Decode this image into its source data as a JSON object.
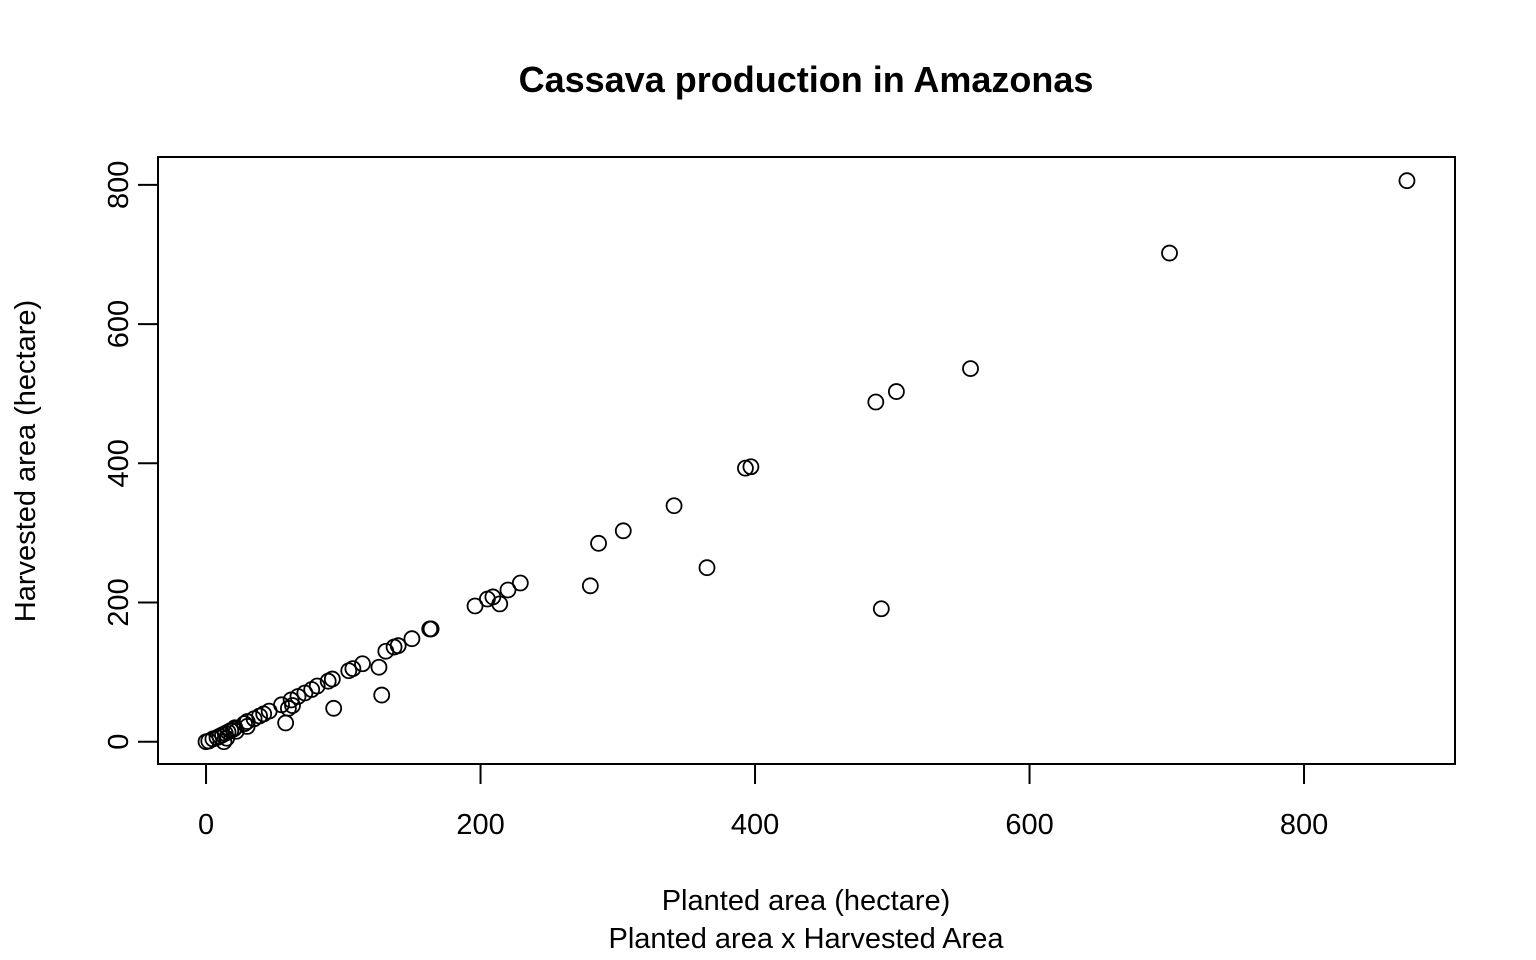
{
  "chart_data": {
    "type": "scatter",
    "title": "Cassava production in Amazonas",
    "xlabel": "Planted area (hectare)",
    "subtitle": "Planted area x Harvested Area",
    "ylabel": "Harvested area (hectare)",
    "xlim": [
      -35,
      910
    ],
    "ylim": [
      -32,
      840
    ],
    "x_ticks": [
      0,
      200,
      400,
      600,
      800
    ],
    "y_ticks": [
      0,
      200,
      400,
      600,
      800
    ],
    "grid": false,
    "legend": "none",
    "points": [
      {
        "x": 0,
        "y": 0
      },
      {
        "x": 2,
        "y": 1
      },
      {
        "x": 5,
        "y": 4
      },
      {
        "x": 8,
        "y": 6
      },
      {
        "x": 10,
        "y": 8
      },
      {
        "x": 12,
        "y": 10
      },
      {
        "x": 13,
        "y": 0
      },
      {
        "x": 14,
        "y": 12
      },
      {
        "x": 15,
        "y": 5
      },
      {
        "x": 16,
        "y": 14
      },
      {
        "x": 18,
        "y": 16
      },
      {
        "x": 20,
        "y": 18
      },
      {
        "x": 21,
        "y": 20
      },
      {
        "x": 22,
        "y": 15
      },
      {
        "x": 28,
        "y": 26
      },
      {
        "x": 30,
        "y": 22
      },
      {
        "x": 30,
        "y": 29
      },
      {
        "x": 35,
        "y": 33
      },
      {
        "x": 39,
        "y": 37
      },
      {
        "x": 42,
        "y": 40
      },
      {
        "x": 46,
        "y": 44
      },
      {
        "x": 55,
        "y": 53
      },
      {
        "x": 58,
        "y": 27
      },
      {
        "x": 60,
        "y": 48
      },
      {
        "x": 62,
        "y": 60
      },
      {
        "x": 63,
        "y": 52
      },
      {
        "x": 67,
        "y": 65
      },
      {
        "x": 72,
        "y": 70
      },
      {
        "x": 77,
        "y": 75
      },
      {
        "x": 81,
        "y": 80
      },
      {
        "x": 89,
        "y": 87
      },
      {
        "x": 92,
        "y": 90
      },
      {
        "x": 93,
        "y": 48
      },
      {
        "x": 104,
        "y": 102
      },
      {
        "x": 107,
        "y": 105
      },
      {
        "x": 114,
        "y": 112
      },
      {
        "x": 126,
        "y": 107
      },
      {
        "x": 128,
        "y": 67
      },
      {
        "x": 131,
        "y": 130
      },
      {
        "x": 137,
        "y": 136
      },
      {
        "x": 140,
        "y": 138
      },
      {
        "x": 150,
        "y": 148
      },
      {
        "x": 163,
        "y": 162
      },
      {
        "x": 164,
        "y": 162
      },
      {
        "x": 196,
        "y": 195
      },
      {
        "x": 205,
        "y": 205
      },
      {
        "x": 209,
        "y": 208
      },
      {
        "x": 214,
        "y": 198
      },
      {
        "x": 220,
        "y": 218
      },
      {
        "x": 229,
        "y": 228
      },
      {
        "x": 280,
        "y": 224
      },
      {
        "x": 286,
        "y": 285
      },
      {
        "x": 304,
        "y": 303
      },
      {
        "x": 341,
        "y": 339
      },
      {
        "x": 365,
        "y": 250
      },
      {
        "x": 393,
        "y": 393
      },
      {
        "x": 397,
        "y": 395
      },
      {
        "x": 488,
        "y": 488
      },
      {
        "x": 492,
        "y": 191
      },
      {
        "x": 503,
        "y": 503
      },
      {
        "x": 557,
        "y": 536
      },
      {
        "x": 702,
        "y": 702
      },
      {
        "x": 875,
        "y": 806
      }
    ]
  }
}
